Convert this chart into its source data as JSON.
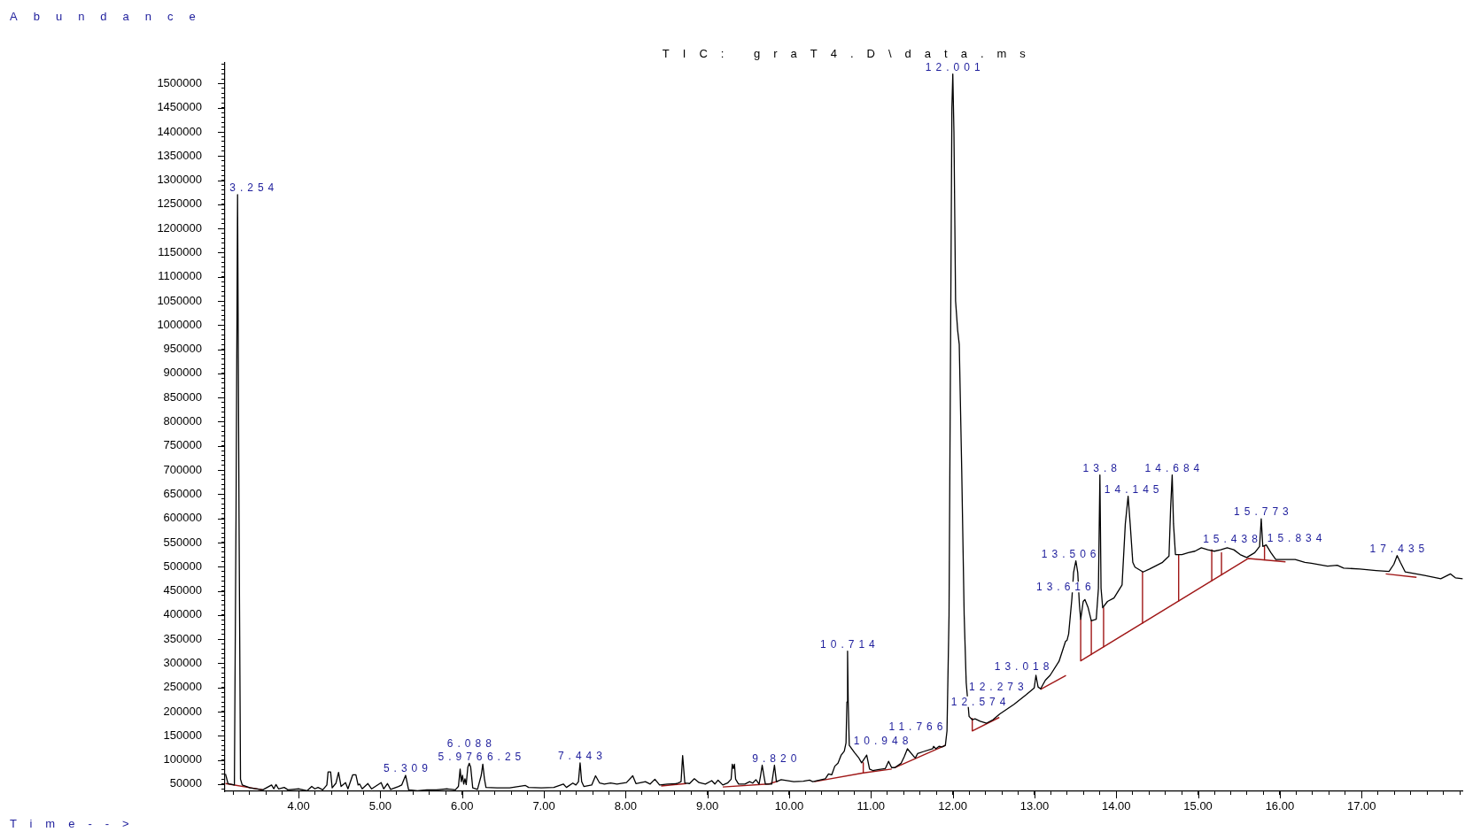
{
  "chart_data": {
    "type": "line",
    "title": "TIC: graT4.D\\data.ms",
    "xlabel": "Time-->",
    "ylabel": "Abundance",
    "marker": "none",
    "xlim": [
      3.1,
      18.24
    ],
    "ylim": [
      35000,
      1543000
    ],
    "xticks": [
      {
        "value": 3.2,
        "label": null
      },
      {
        "value": 3.4,
        "label": null
      },
      {
        "value": 3.6,
        "label": null
      },
      {
        "value": 3.8,
        "label": null
      },
      {
        "value": 4,
        "label": "4.00"
      },
      {
        "value": 4.2,
        "label": null
      },
      {
        "value": 4.4,
        "label": null
      },
      {
        "value": 4.6,
        "label": null
      },
      {
        "value": 4.8,
        "label": null
      },
      {
        "value": 5,
        "label": "5.00"
      },
      {
        "value": 5.2,
        "label": null
      },
      {
        "value": 5.4,
        "label": null
      },
      {
        "value": 5.6,
        "label": null
      },
      {
        "value": 5.8,
        "label": null
      },
      {
        "value": 6,
        "label": "6.00"
      },
      {
        "value": 6.2,
        "label": null
      },
      {
        "value": 6.4,
        "label": null
      },
      {
        "value": 6.6,
        "label": null
      },
      {
        "value": 6.8,
        "label": null
      },
      {
        "value": 7,
        "label": "7.00"
      },
      {
        "value": 7.2,
        "label": null
      },
      {
        "value": 7.4,
        "label": null
      },
      {
        "value": 7.6,
        "label": null
      },
      {
        "value": 7.8,
        "label": null
      },
      {
        "value": 8,
        "label": "8.00"
      },
      {
        "value": 8.2,
        "label": null
      },
      {
        "value": 8.4,
        "label": null
      },
      {
        "value": 8.6,
        "label": null
      },
      {
        "value": 8.8,
        "label": null
      },
      {
        "value": 9,
        "label": "9.00"
      },
      {
        "value": 9.2,
        "label": null
      },
      {
        "value": 9.4,
        "label": null
      },
      {
        "value": 9.6,
        "label": null
      },
      {
        "value": 9.8,
        "label": null
      },
      {
        "value": 10,
        "label": "10.00"
      },
      {
        "value": 10.2,
        "label": null
      },
      {
        "value": 10.4,
        "label": null
      },
      {
        "value": 10.6,
        "label": null
      },
      {
        "value": 10.8,
        "label": null
      },
      {
        "value": 11,
        "label": "11.00"
      },
      {
        "value": 11.2,
        "label": null
      },
      {
        "value": 11.4,
        "label": null
      },
      {
        "value": 11.6,
        "label": null
      },
      {
        "value": 11.8,
        "label": null
      },
      {
        "value": 12,
        "label": "12.00"
      },
      {
        "value": 12.2,
        "label": null
      },
      {
        "value": 12.4,
        "label": null
      },
      {
        "value": 12.6,
        "label": null
      },
      {
        "value": 12.8,
        "label": null
      },
      {
        "value": 13,
        "label": "13.00"
      },
      {
        "value": 13.2,
        "label": null
      },
      {
        "value": 13.4,
        "label": null
      },
      {
        "value": 13.6,
        "label": null
      },
      {
        "value": 13.8,
        "label": null
      },
      {
        "value": 14,
        "label": "14.00"
      },
      {
        "value": 14.2,
        "label": null
      },
      {
        "value": 14.4,
        "label": null
      },
      {
        "value": 14.6,
        "label": null
      },
      {
        "value": 14.8,
        "label": null
      },
      {
        "value": 15,
        "label": "15.00"
      },
      {
        "value": 15.2,
        "label": null
      },
      {
        "value": 15.4,
        "label": null
      },
      {
        "value": 15.6,
        "label": null
      },
      {
        "value": 15.8,
        "label": null
      },
      {
        "value": 16,
        "label": "16.00"
      },
      {
        "value": 16.2,
        "label": null
      },
      {
        "value": 16.4,
        "label": null
      },
      {
        "value": 16.6,
        "label": null
      },
      {
        "value": 16.8,
        "label": null
      },
      {
        "value": 17,
        "label": "17.00"
      },
      {
        "value": 17.2,
        "label": null
      },
      {
        "value": 17.4,
        "label": null
      },
      {
        "value": 17.6,
        "label": null
      },
      {
        "value": 17.8,
        "label": null
      },
      {
        "value": 18,
        "label": null
      },
      {
        "value": 18.2,
        "label": null
      }
    ],
    "yticks": [
      {
        "value": 40000,
        "label": null
      },
      50000,
      {
        "value": 60000,
        "label": null
      },
      {
        "value": 70000,
        "label": null
      },
      {
        "value": 80000,
        "label": null
      },
      {
        "value": 90000,
        "label": null
      },
      100000,
      {
        "value": 110000,
        "label": null
      },
      {
        "value": 120000,
        "label": null
      },
      {
        "value": 130000,
        "label": null
      },
      {
        "value": 140000,
        "label": null
      },
      150000,
      {
        "value": 160000,
        "label": null
      },
      {
        "value": 170000,
        "label": null
      },
      {
        "value": 180000,
        "label": null
      },
      {
        "value": 190000,
        "label": null
      },
      200000,
      {
        "value": 210000,
        "label": null
      },
      {
        "value": 220000,
        "label": null
      },
      {
        "value": 230000,
        "label": null
      },
      {
        "value": 240000,
        "label": null
      },
      250000,
      {
        "value": 260000,
        "label": null
      },
      {
        "value": 270000,
        "label": null
      },
      {
        "value": 280000,
        "label": null
      },
      {
        "value": 290000,
        "label": null
      },
      300000,
      {
        "value": 310000,
        "label": null
      },
      {
        "value": 320000,
        "label": null
      },
      {
        "value": 330000,
        "label": null
      },
      {
        "value": 340000,
        "label": null
      },
      350000,
      {
        "value": 360000,
        "label": null
      },
      {
        "value": 370000,
        "label": null
      },
      {
        "value": 380000,
        "label": null
      },
      {
        "value": 390000,
        "label": null
      },
      400000,
      {
        "value": 410000,
        "label": null
      },
      {
        "value": 420000,
        "label": null
      },
      {
        "value": 430000,
        "label": null
      },
      {
        "value": 440000,
        "label": null
      },
      450000,
      {
        "value": 460000,
        "label": null
      },
      {
        "value": 470000,
        "label": null
      },
      {
        "value": 480000,
        "label": null
      },
      {
        "value": 490000,
        "label": null
      },
      500000,
      {
        "value": 510000,
        "label": null
      },
      {
        "value": 520000,
        "label": null
      },
      {
        "value": 530000,
        "label": null
      },
      {
        "value": 540000,
        "label": null
      },
      550000,
      {
        "value": 560000,
        "label": null
      },
      {
        "value": 570000,
        "label": null
      },
      {
        "value": 580000,
        "label": null
      },
      {
        "value": 590000,
        "label": null
      },
      600000,
      {
        "value": 610000,
        "label": null
      },
      {
        "value": 620000,
        "label": null
      },
      {
        "value": 630000,
        "label": null
      },
      {
        "value": 640000,
        "label": null
      },
      650000,
      {
        "value": 660000,
        "label": null
      },
      {
        "value": 670000,
        "label": null
      },
      {
        "value": 680000,
        "label": null
      },
      {
        "value": 690000,
        "label": null
      },
      700000,
      {
        "value": 710000,
        "label": null
      },
      {
        "value": 720000,
        "label": null
      },
      {
        "value": 730000,
        "label": null
      },
      {
        "value": 740000,
        "label": null
      },
      750000,
      {
        "value": 760000,
        "label": null
      },
      {
        "value": 770000,
        "label": null
      },
      {
        "value": 780000,
        "label": null
      },
      {
        "value": 790000,
        "label": null
      },
      800000,
      {
        "value": 810000,
        "label": null
      },
      {
        "value": 820000,
        "label": null
      },
      {
        "value": 830000,
        "label": null
      },
      {
        "value": 840000,
        "label": null
      },
      850000,
      {
        "value": 860000,
        "label": null
      },
      {
        "value": 870000,
        "label": null
      },
      {
        "value": 880000,
        "label": null
      },
      {
        "value": 890000,
        "label": null
      },
      900000,
      {
        "value": 910000,
        "label": null
      },
      {
        "value": 920000,
        "label": null
      },
      {
        "value": 930000,
        "label": null
      },
      {
        "value": 940000,
        "label": null
      },
      950000,
      {
        "value": 960000,
        "label": null
      },
      {
        "value": 970000,
        "label": null
      },
      {
        "value": 980000,
        "label": null
      },
      {
        "value": 990000,
        "label": null
      },
      1000000,
      {
        "value": 1010000,
        "label": null
      },
      {
        "value": 1020000,
        "label": null
      },
      {
        "value": 1030000,
        "label": null
      },
      {
        "value": 1040000,
        "label": null
      },
      1050000,
      {
        "value": 1060000,
        "label": null
      },
      {
        "value": 1070000,
        "label": null
      },
      {
        "value": 1080000,
        "label": null
      },
      {
        "value": 1090000,
        "label": null
      },
      1100000,
      {
        "value": 1110000,
        "label": null
      },
      {
        "value": 1120000,
        "label": null
      },
      {
        "value": 1130000,
        "label": null
      },
      {
        "value": 1140000,
        "label": null
      },
      1150000,
      {
        "value": 1160000,
        "label": null
      },
      {
        "value": 1170000,
        "label": null
      },
      {
        "value": 1180000,
        "label": null
      },
      {
        "value": 1190000,
        "label": null
      },
      1200000,
      {
        "value": 1210000,
        "label": null
      },
      {
        "value": 1220000,
        "label": null
      },
      {
        "value": 1230000,
        "label": null
      },
      {
        "value": 1240000,
        "label": null
      },
      1250000,
      {
        "value": 1260000,
        "label": null
      },
      {
        "value": 1270000,
        "label": null
      },
      {
        "value": 1280000,
        "label": null
      },
      {
        "value": 1290000,
        "label": null
      },
      1300000,
      {
        "value": 1310000,
        "label": null
      },
      {
        "value": 1320000,
        "label": null
      },
      {
        "value": 1330000,
        "label": null
      },
      {
        "value": 1340000,
        "label": null
      },
      1350000,
      {
        "value": 1360000,
        "label": null
      },
      {
        "value": 1370000,
        "label": null
      },
      {
        "value": 1380000,
        "label": null
      },
      {
        "value": 1390000,
        "label": null
      },
      1400000,
      {
        "value": 1410000,
        "label": null
      },
      {
        "value": 1420000,
        "label": null
      },
      {
        "value": 1430000,
        "label": null
      },
      {
        "value": 1440000,
        "label": null
      },
      1450000,
      {
        "value": 1460000,
        "label": null
      },
      {
        "value": 1470000,
        "label": null
      },
      {
        "value": 1480000,
        "label": null
      },
      {
        "value": 1490000,
        "label": null
      },
      1500000,
      {
        "value": 1510000,
        "label": null
      },
      {
        "value": 1520000,
        "label": null
      },
      {
        "value": 1530000,
        "label": null
      },
      {
        "value": 1540000,
        "label": null
      }
    ],
    "series": [
      {
        "color": "#000000",
        "x": [
          3.106,
          3.137,
          3.215,
          3.235,
          3.254,
          3.272,
          3.29,
          3.311,
          3.408,
          3.562,
          3.67,
          3.697,
          3.724,
          3.755,
          3.824,
          3.871,
          4.006,
          4.103,
          4.161,
          4.199,
          4.238,
          4.296,
          4.346,
          4.361,
          4.392,
          4.411,
          4.458,
          4.489,
          4.52,
          4.574,
          4.604,
          4.662,
          4.701,
          4.728,
          4.747,
          4.778,
          4.848,
          4.894,
          5.01,
          5.041,
          5.087,
          5.126,
          5.222,
          5.261,
          5.309,
          5.346,
          5.454,
          5.57,
          5.686,
          5.821,
          5.917,
          5.955,
          5.976,
          5.99,
          6.005,
          6.02,
          6.035,
          6.05,
          6.07,
          6.088,
          6.105,
          6.13,
          6.188,
          6.234,
          6.253,
          6.273,
          6.292,
          6.427,
          6.582,
          6.775,
          6.813,
          6.968,
          7.122,
          7.238,
          7.276,
          7.354,
          7.392,
          7.423,
          7.443,
          7.462,
          7.489,
          7.585,
          7.632,
          7.682,
          7.74,
          7.817,
          7.894,
          8.01,
          8.087,
          8.126,
          8.242,
          8.3,
          8.358,
          8.415,
          8.512,
          8.628,
          8.678,
          8.697,
          8.724,
          8.782,
          8.84,
          8.898,
          8.975,
          9.053,
          9.091,
          9.13,
          9.188,
          9.246,
          9.29,
          9.304,
          9.318,
          9.331,
          9.345,
          9.381,
          9.458,
          9.516,
          9.554,
          9.593,
          9.632,
          9.651,
          9.67,
          9.69,
          9.709,
          9.786,
          9.82,
          9.844,
          9.902,
          10.056,
          10.172,
          10.249,
          10.288,
          10.442,
          10.481,
          10.52,
          10.558,
          10.597,
          10.636,
          10.674,
          10.695,
          10.706,
          10.714,
          10.722,
          10.735,
          10.8,
          10.848,
          10.886,
          10.925,
          10.948,
          10.983,
          11.022,
          11.099,
          11.176,
          11.215,
          11.253,
          11.292,
          11.369,
          11.408,
          11.446,
          11.524,
          11.543,
          11.57,
          11.639,
          11.755,
          11.766,
          11.794,
          11.832,
          11.871,
          11.91,
          11.93,
          11.955,
          11.975,
          11.99,
          12.001,
          12.015,
          12.035,
          12.06,
          12.08,
          12.11,
          12.14,
          12.165,
          12.2,
          12.239,
          12.273,
          12.336,
          12.414,
          12.491,
          12.574,
          12.75,
          12.9,
          12.997,
          13.018,
          13.044,
          13.075,
          13.133,
          13.191,
          13.3,
          13.379,
          13.399,
          13.418,
          13.458,
          13.478,
          13.506,
          13.529,
          13.549,
          13.565,
          13.596,
          13.616,
          13.656,
          13.695,
          13.755,
          13.782,
          13.8,
          13.814,
          13.834,
          13.893,
          13.972,
          14.071,
          14.111,
          14.145,
          14.17,
          14.202,
          14.229,
          14.328,
          14.407,
          14.487,
          14.566,
          14.645,
          14.665,
          14.684,
          14.7,
          14.724,
          14.803,
          14.882,
          14.962,
          15.041,
          15.12,
          15.199,
          15.278,
          15.357,
          15.438,
          15.515,
          15.595,
          15.694,
          15.753,
          15.773,
          15.792,
          15.834,
          15.891,
          15.951,
          16.07,
          16.188,
          16.307,
          16.386,
          16.584,
          16.702,
          16.782,
          16.979,
          17.177,
          17.336,
          17.395,
          17.435,
          17.474,
          17.534,
          17.771,
          17.969,
          18.088,
          18.147,
          18.238
        ],
        "values": [
          71000,
          51000,
          48000,
          600000,
          1270000,
          600000,
          60000,
          48000,
          42000,
          38000,
          48000,
          40000,
          49000,
          40000,
          43000,
          38000,
          40000,
          36000,
          45000,
          40000,
          43000,
          38000,
          48000,
          75000,
          75000,
          42000,
          52000,
          74000,
          45000,
          53000,
          40000,
          69000,
          69000,
          48000,
          50000,
          40000,
          51000,
          40000,
          53000,
          40000,
          51000,
          39000,
          45000,
          48000,
          68000,
          38000,
          36000,
          38000,
          38000,
          40000,
          38000,
          45000,
          81000,
          55000,
          68000,
          50000,
          61000,
          49000,
          85000,
          93000,
          85000,
          42000,
          39000,
          68000,
          91000,
          61000,
          43000,
          42000,
          42000,
          47000,
          43000,
          42000,
          43000,
          50000,
          43000,
          52000,
          48000,
          55000,
          94000,
          55000,
          45000,
          48000,
          67000,
          52000,
          50000,
          52000,
          50000,
          53000,
          67000,
          51000,
          55000,
          50000,
          60000,
          48000,
          50000,
          51000,
          55000,
          109000,
          52000,
          51000,
          61000,
          53000,
          50000,
          57000,
          50000,
          58000,
          48000,
          52000,
          60000,
          91000,
          82000,
          91000,
          60000,
          50000,
          50000,
          55000,
          52000,
          59000,
          50000,
          68000,
          89000,
          68000,
          50000,
          50000,
          89000,
          55000,
          59000,
          55000,
          56000,
          58000,
          55000,
          61000,
          71000,
          69000,
          87000,
          93000,
          110000,
          118000,
          135000,
          220000,
          325000,
          220000,
          130000,
          115000,
          105000,
          94000,
          104000,
          110000,
          81000,
          78000,
          80000,
          82000,
          97000,
          84000,
          84000,
          93000,
          107000,
          123000,
          107000,
          104000,
          113000,
          117000,
          123000,
          128000,
          123000,
          128000,
          127000,
          130000,
          160000,
          400000,
          1000000,
          1450000,
          1520000,
          1400000,
          1050000,
          990000,
          960000,
          700000,
          400000,
          260000,
          190000,
          183000,
          185000,
          180000,
          176000,
          183000,
          195000,
          215000,
          235000,
          249000,
          275000,
          251000,
          247000,
          265000,
          275000,
          304000,
          345000,
          348000,
          361000,
          435000,
          488000,
          512000,
          488000,
          422000,
          391000,
          428000,
          432000,
          415000,
          388000,
          391000,
          455000,
          690000,
          455000,
          415000,
          428000,
          435000,
          462000,
          589000,
          646000,
          589000,
          509000,
          499000,
          489000,
          495000,
          502000,
          509000,
          522000,
          622000,
          690000,
          589000,
          525000,
          525000,
          529000,
          532000,
          539000,
          535000,
          532000,
          535000,
          539000,
          535000,
          525000,
          519000,
          529000,
          542000,
          599000,
          542000,
          545000,
          529000,
          515000,
          515000,
          515000,
          509000,
          507000,
          501000,
          503000,
          497000,
          495000,
          492000,
          490000,
          505000,
          523000,
          509000,
          489000,
          482000,
          475000,
          485000,
          477000,
          475000
        ]
      },
      {
        "color": "#a01818",
        "x": [
          3.107,
          3.562
        ],
        "values": [
          51000,
          38000
        ]
      },
      {
        "color": "#a01818",
        "x": [
          8.434,
          8.743
        ],
        "values": [
          46000,
          51000
        ]
      },
      {
        "color": "#a01818",
        "x": [
          9.188,
          9.748,
          9.86
        ],
        "values": [
          44000,
          50000,
          56000
        ]
      },
      {
        "color": "#a01818",
        "x": [
          10.308,
          10.906,
          11.254
        ],
        "values": [
          55000,
          73000,
          81000
        ]
      },
      {
        "color": "#a01818",
        "x": [
          10.906,
          10.906
        ],
        "values": [
          94000,
          73000
        ]
      },
      {
        "color": "#a01818",
        "x": [
          11.292,
          11.91
        ],
        "values": [
          84000,
          130000
        ]
      },
      {
        "color": "#a01818",
        "x": [
          12.239,
          12.239,
          12.57
        ],
        "values": [
          186000,
          160000,
          188000
        ]
      },
      {
        "color": "#a01818",
        "x": [
          13.074,
          13.385
        ],
        "values": [
          246000,
          275000
        ]
      },
      {
        "color": "#a01818",
        "x": [
          13.565,
          13.565,
          15.615,
          16.07
        ],
        "values": [
          391000,
          305000,
          517000,
          510000
        ]
      },
      {
        "color": "#a01818",
        "x": [
          13.695,
          13.695
        ],
        "values": [
          388000,
          318000
        ]
      },
      {
        "color": "#a01818",
        "x": [
          13.845,
          13.845
        ],
        "values": [
          415000,
          334000
        ]
      },
      {
        "color": "#a01818",
        "x": [
          14.321,
          14.321
        ],
        "values": [
          489000,
          383000
        ]
      },
      {
        "color": "#a01818",
        "x": [
          14.763,
          14.763
        ],
        "values": [
          525000,
          429000
        ]
      },
      {
        "color": "#a01818",
        "x": [
          15.168,
          15.168
        ],
        "values": [
          535000,
          471000
        ]
      },
      {
        "color": "#a01818",
        "x": [
          15.287,
          15.287
        ],
        "values": [
          529000,
          483000
        ]
      },
      {
        "color": "#a01818",
        "x": [
          15.813,
          15.813
        ],
        "values": [
          542000,
          514000
        ]
      },
      {
        "color": "#a01818",
        "x": [
          17.296,
          17.672
        ],
        "values": [
          485000,
          478000
        ]
      }
    ],
    "annotations": [
      {
        "text": "3.254",
        "x": 3.254,
        "y": 1270000
      },
      {
        "text": "5.309",
        "x": 5.309,
        "y": 68000
      },
      {
        "text": "5.976",
        "x": 5.976,
        "y": 81000
      },
      {
        "text": "6.088",
        "x": 6.088,
        "y": 93000
      },
      {
        "text": "6.25",
        "x": 6.253,
        "y": 91000
      },
      {
        "text": "7.443",
        "x": 7.443,
        "y": 94000
      },
      {
        "text": "9.820",
        "x": 9.82,
        "y": 89000
      },
      {
        "text": "10.714",
        "x": 10.714,
        "y": 325000
      },
      {
        "text": "10.948",
        "x": 10.948,
        "y": 110000
      },
      {
        "text": "11.766",
        "x": 11.766,
        "y": 128000
      },
      {
        "text": "12.001",
        "x": 12.001,
        "y": 1520000
      },
      {
        "text": "12.273",
        "x": 12.273,
        "y": 185000
      },
      {
        "text": "12.574",
        "x": 12.574,
        "y": 195000
      },
      {
        "text": "13.018",
        "x": 13.018,
        "y": 275000
      },
      {
        "text": "13.506",
        "x": 13.506,
        "y": 512000
      },
      {
        "text": "13.616",
        "x": 13.616,
        "y": 432000
      },
      {
        "text": "13.8",
        "x": 13.8,
        "y": 690000
      },
      {
        "text": "14.145",
        "x": 14.145,
        "y": 646000
      },
      {
        "text": "14.684",
        "x": 14.684,
        "y": 690000
      },
      {
        "text": "15.438",
        "x": 15.438,
        "y": 535000
      },
      {
        "text": "15.773",
        "x": 15.773,
        "y": 599000
      },
      {
        "text": "15.834",
        "x": 15.834,
        "y": 545000
      },
      {
        "text": "17.435",
        "x": 17.435,
        "y": 523000
      }
    ]
  }
}
